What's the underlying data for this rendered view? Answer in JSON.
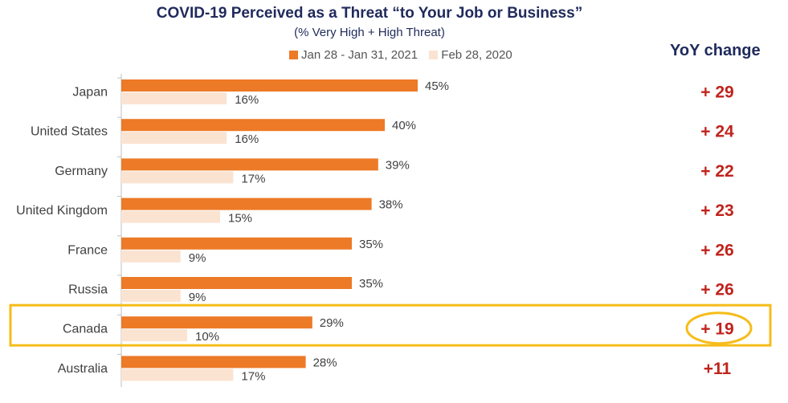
{
  "chart_data": {
    "type": "bar",
    "orientation": "horizontal",
    "title": "COVID-19 Perceived as a Threat “to Your Job or Business”",
    "subtitle": "(% Very High + High Threat)",
    "categories": [
      "Japan",
      "United States",
      "Germany",
      "United Kingdom",
      "France",
      "Russia",
      "Canada",
      "Australia"
    ],
    "series": [
      {
        "name": "Jan 28 - Jan 31, 2021",
        "values": [
          45,
          40,
          39,
          38,
          35,
          35,
          29,
          28
        ],
        "labels": [
          "45%",
          "40%",
          "39%",
          "38%",
          "35%",
          "35%",
          "29%",
          "28%"
        ],
        "color": "#ec7a27"
      },
      {
        "name": "Feb 28, 2020",
        "values": [
          16,
          16,
          17,
          15,
          9,
          9,
          10,
          17
        ],
        "labels": [
          "16%",
          "16%",
          "17%",
          "15%",
          "9%",
          "9%",
          "10%",
          "17%"
        ],
        "color": "#fbe3d2"
      }
    ],
    "yoy_header": "YoY change",
    "yoy_change": [
      "+ 29",
      "+ 24",
      "+ 22",
      "+ 23",
      "+ 26",
      "+ 26",
      "+ 19",
      "+11"
    ],
    "highlight_category": "Canada",
    "highlight_color": "#f6bc19",
    "yoy_color": "#c0231c",
    "xlim": [
      0,
      100
    ],
    "legend_position": "top",
    "grid": false
  }
}
